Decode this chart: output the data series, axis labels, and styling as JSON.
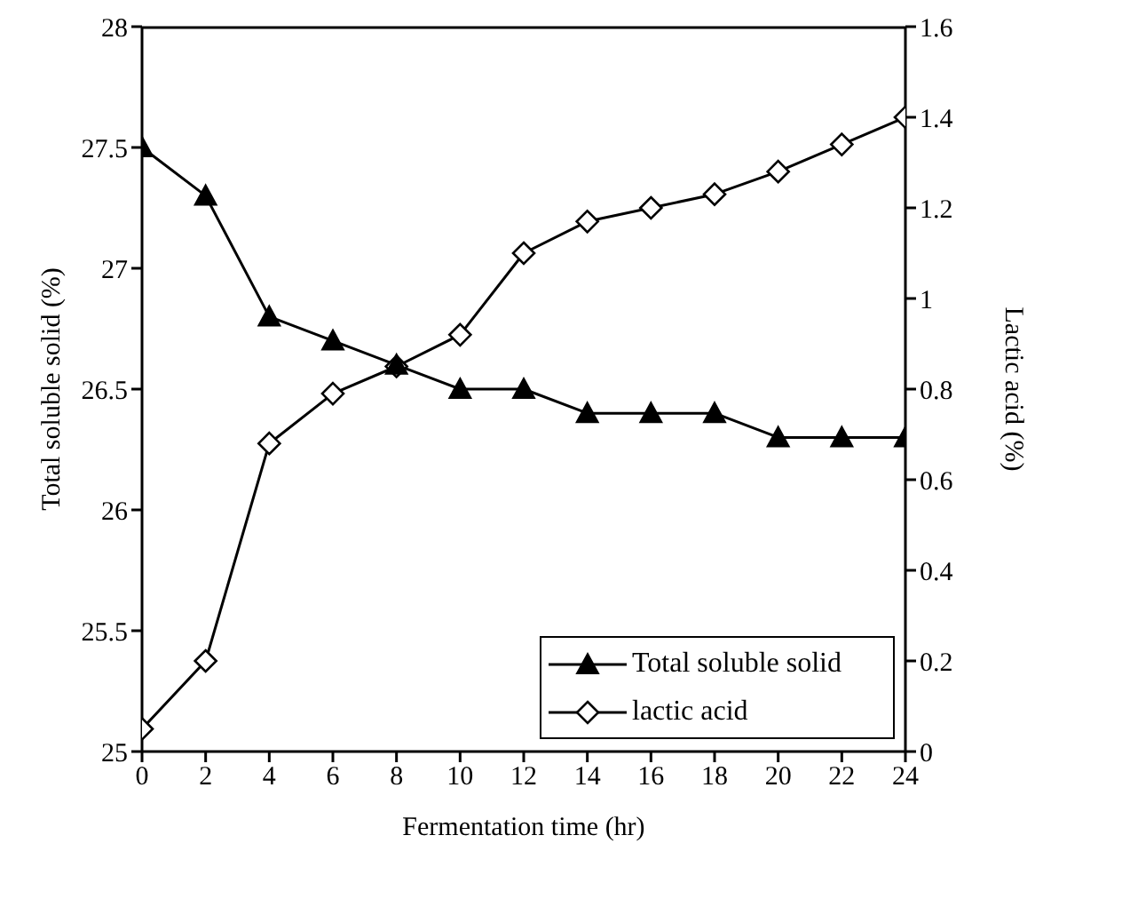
{
  "chart_data": {
    "type": "line",
    "xlabel": "Fermentation time (hr)",
    "ylabel": "Total  soluble solid (%)",
    "y2label": "Lactic acid (%)",
    "x": [
      0,
      2,
      4,
      6,
      8,
      10,
      12,
      14,
      16,
      18,
      20,
      22,
      24
    ],
    "series": [
      {
        "name": "Total soluble solid",
        "color": "#000000",
        "marker": "triangle",
        "values": [
          27.5,
          27.3,
          26.8,
          26.7,
          26.6,
          26.5,
          26.5,
          26.4,
          26.4,
          26.4,
          26.3,
          26.3,
          26.3
        ]
      },
      {
        "name": "lactic acid",
        "color": "#000000",
        "marker": "diamond",
        "axis": "y2",
        "values": [
          0.05,
          0.2,
          0.68,
          0.79,
          0.85,
          0.92,
          1.1,
          1.17,
          1.2,
          1.23,
          1.28,
          1.34,
          1.4
        ]
      }
    ],
    "xlim": [
      0,
      24
    ],
    "xticks": [
      0,
      2,
      4,
      6,
      8,
      10,
      12,
      14,
      16,
      18,
      20,
      22,
      24
    ],
    "ylim": [
      25,
      28
    ],
    "yticks": [
      25,
      25.5,
      26,
      26.5,
      27,
      27.5,
      28
    ],
    "y2lim": [
      0,
      1.6
    ],
    "y2ticks": [
      0,
      0.2,
      0.4,
      0.6,
      0.8,
      1,
      1.2,
      1.4,
      1.6
    ],
    "legend": "bottom right",
    "grid": false,
    "line_style": "solid"
  }
}
